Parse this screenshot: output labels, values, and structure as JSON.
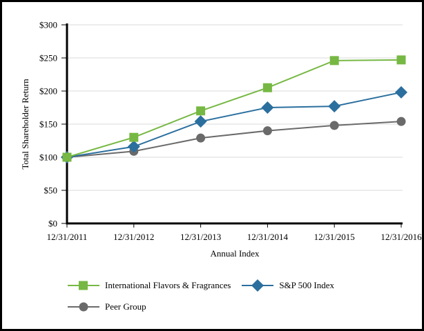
{
  "chart_data": {
    "type": "line",
    "title": "",
    "xlabel": "Annual Index",
    "ylabel": "Total Shareholder Return",
    "categories": [
      "12/31/2011",
      "12/31/2012",
      "12/31/2013",
      "12/31/2014",
      "12/31/2015",
      "12/31/2016"
    ],
    "ylim": [
      0,
      300
    ],
    "y_ticks": [
      {
        "value": 0,
        "label": "$0"
      },
      {
        "value": 50,
        "label": "$50"
      },
      {
        "value": 100,
        "label": "$100"
      },
      {
        "value": 150,
        "label": "$150"
      },
      {
        "value": 200,
        "label": "$200"
      },
      {
        "value": 250,
        "label": "$250"
      },
      {
        "value": 300,
        "label": "$300"
      }
    ],
    "grid": "horizontal",
    "legend_position": "bottom",
    "colors": {
      "gridline": "#d9d9d9",
      "axis": "#000000"
    },
    "series": [
      {
        "name": "International Flavors & Fragrances",
        "marker": "square",
        "color": "#76b843",
        "values": [
          100,
          130,
          170,
          205,
          246,
          247
        ]
      },
      {
        "name": "S&P 500 Index",
        "marker": "diamond",
        "color": "#2b6f9e",
        "values": [
          100,
          116,
          154,
          175,
          177,
          198
        ]
      },
      {
        "name": "Peer Group",
        "marker": "circle",
        "color": "#6a6a6a",
        "values": [
          100,
          109,
          129,
          140,
          148,
          154
        ]
      }
    ]
  }
}
